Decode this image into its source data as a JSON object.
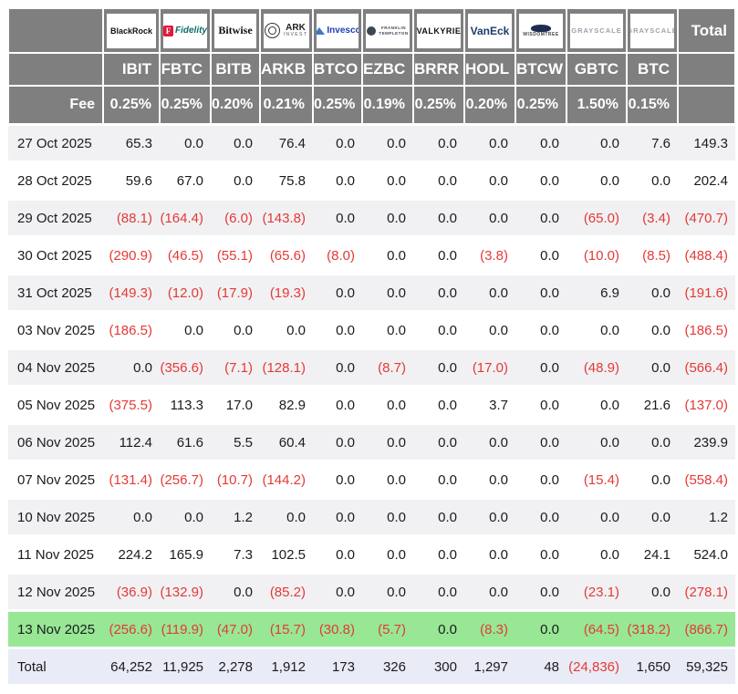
{
  "header": {
    "total_label": "Total",
    "fee_label": "Fee"
  },
  "colors": {
    "header_bg": "#7f7f7f",
    "row_stripe": "#f1f1f3",
    "row_plain": "#ffffff",
    "highlight_row": "#97e795",
    "total_row_bg": "#e9ebf7",
    "negative_text": "#e53935",
    "positive_text": "#1b1b1d"
  },
  "chart_data": {
    "type": "table",
    "columns": [
      {
        "ticker": "IBIT",
        "fee": "0.25%",
        "provider": "BlackRock",
        "logo_type": "blackrock",
        "logo_lines": [
          "BlackRock"
        ]
      },
      {
        "ticker": "FBTC",
        "fee": "0.25%",
        "provider": "Fidelity",
        "logo_type": "fidelity",
        "logo_lines": [
          "F",
          "Fidelity"
        ]
      },
      {
        "ticker": "BITB",
        "fee": "0.20%",
        "provider": "Bitwise",
        "logo_type": "bitwise",
        "logo_lines": [
          "Bitwise"
        ]
      },
      {
        "ticker": "ARKB",
        "fee": "0.21%",
        "provider": "ARK Invest",
        "logo_type": "ark",
        "logo_lines": [
          "ARK",
          "INVEST"
        ]
      },
      {
        "ticker": "BTCO",
        "fee": "0.25%",
        "provider": "Invesco",
        "logo_type": "invesco",
        "logo_lines": [
          "Invesco"
        ]
      },
      {
        "ticker": "EZBC",
        "fee": "0.19%",
        "provider": "Franklin Templeton",
        "logo_type": "franklin",
        "logo_lines": [
          "FRANKLIN",
          "TEMPLETON"
        ]
      },
      {
        "ticker": "BRRR",
        "fee": "0.25%",
        "provider": "Valkyrie",
        "logo_type": "valkyrie",
        "logo_lines": [
          "VALKYRIE"
        ]
      },
      {
        "ticker": "HODL",
        "fee": "0.20%",
        "provider": "VanEck",
        "logo_type": "vaneck",
        "logo_lines": [
          "VanEck"
        ]
      },
      {
        "ticker": "BTCW",
        "fee": "0.25%",
        "provider": "WisdomTree",
        "logo_type": "wisdomtree",
        "logo_lines": [
          "WISDOMTREE"
        ]
      },
      {
        "ticker": "GBTC",
        "fee": "1.50%",
        "provider": "Grayscale",
        "logo_type": "grayscale",
        "logo_lines": [
          "GRAYSCALE"
        ]
      },
      {
        "ticker": "BTC",
        "fee": "0.15%",
        "provider": "Grayscale",
        "logo_type": "grayscale",
        "logo_lines": [
          "GRAYSCALE"
        ]
      }
    ],
    "rows": [
      {
        "date": "27 Oct 2025",
        "values": [
          65.3,
          0.0,
          0.0,
          76.4,
          0.0,
          0.0,
          0.0,
          0.0,
          0.0,
          0.0,
          7.6
        ],
        "total": 149.3,
        "highlight": false
      },
      {
        "date": "28 Oct 2025",
        "values": [
          59.6,
          67.0,
          0.0,
          75.8,
          0.0,
          0.0,
          0.0,
          0.0,
          0.0,
          0.0,
          0.0
        ],
        "total": 202.4,
        "highlight": false
      },
      {
        "date": "29 Oct 2025",
        "values": [
          -88.1,
          -164.4,
          -6.0,
          -143.8,
          0.0,
          0.0,
          0.0,
          0.0,
          0.0,
          -65.0,
          -3.4
        ],
        "total": -470.7,
        "highlight": false
      },
      {
        "date": "30 Oct 2025",
        "values": [
          -290.9,
          -46.5,
          -55.1,
          -65.6,
          -8.0,
          0.0,
          0.0,
          -3.8,
          0.0,
          -10.0,
          -8.5
        ],
        "total": -488.4,
        "highlight": false
      },
      {
        "date": "31 Oct 2025",
        "values": [
          -149.3,
          -12.0,
          -17.9,
          -19.3,
          0.0,
          0.0,
          0.0,
          0.0,
          0.0,
          6.9,
          0.0
        ],
        "total": -191.6,
        "highlight": false
      },
      {
        "date": "03 Nov 2025",
        "values": [
          -186.5,
          0.0,
          0.0,
          0.0,
          0.0,
          0.0,
          0.0,
          0.0,
          0.0,
          0.0,
          0.0
        ],
        "total": -186.5,
        "highlight": false
      },
      {
        "date": "04 Nov 2025",
        "values": [
          0.0,
          -356.6,
          -7.1,
          -128.1,
          0.0,
          -8.7,
          0.0,
          -17.0,
          0.0,
          -48.9,
          0.0
        ],
        "total": -566.4,
        "highlight": false
      },
      {
        "date": "05 Nov 2025",
        "values": [
          -375.5,
          113.3,
          17.0,
          82.9,
          0.0,
          0.0,
          0.0,
          3.7,
          0.0,
          0.0,
          21.6
        ],
        "total": -137.0,
        "highlight": false
      },
      {
        "date": "06 Nov 2025",
        "values": [
          112.4,
          61.6,
          5.5,
          60.4,
          0.0,
          0.0,
          0.0,
          0.0,
          0.0,
          0.0,
          0.0
        ],
        "total": 239.9,
        "highlight": false
      },
      {
        "date": "07 Nov 2025",
        "values": [
          -131.4,
          -256.7,
          -10.7,
          -144.2,
          0.0,
          0.0,
          0.0,
          0.0,
          0.0,
          -15.4,
          0.0
        ],
        "total": -558.4,
        "highlight": false
      },
      {
        "date": "10 Nov 2025",
        "values": [
          0.0,
          0.0,
          1.2,
          0.0,
          0.0,
          0.0,
          0.0,
          0.0,
          0.0,
          0.0,
          0.0
        ],
        "total": 1.2,
        "highlight": false
      },
      {
        "date": "11 Nov 2025",
        "values": [
          224.2,
          165.9,
          7.3,
          102.5,
          0.0,
          0.0,
          0.0,
          0.0,
          0.0,
          0.0,
          24.1
        ],
        "total": 524.0,
        "highlight": false
      },
      {
        "date": "12 Nov 2025",
        "values": [
          -36.9,
          -132.9,
          0.0,
          -85.2,
          0.0,
          0.0,
          0.0,
          0.0,
          0.0,
          -23.1,
          0.0
        ],
        "total": -278.1,
        "highlight": false
      },
      {
        "date": "13 Nov 2025",
        "values": [
          -256.6,
          -119.9,
          -47.0,
          -15.7,
          -30.8,
          -5.7,
          0.0,
          -8.3,
          0.0,
          -64.5,
          -318.2
        ],
        "total": -866.7,
        "highlight": true
      }
    ],
    "totals": {
      "label": "Total",
      "values": [
        64252,
        11925,
        2278,
        1912,
        173,
        326,
        300,
        1297,
        48,
        -24836,
        1650
      ],
      "total": 59325
    }
  }
}
